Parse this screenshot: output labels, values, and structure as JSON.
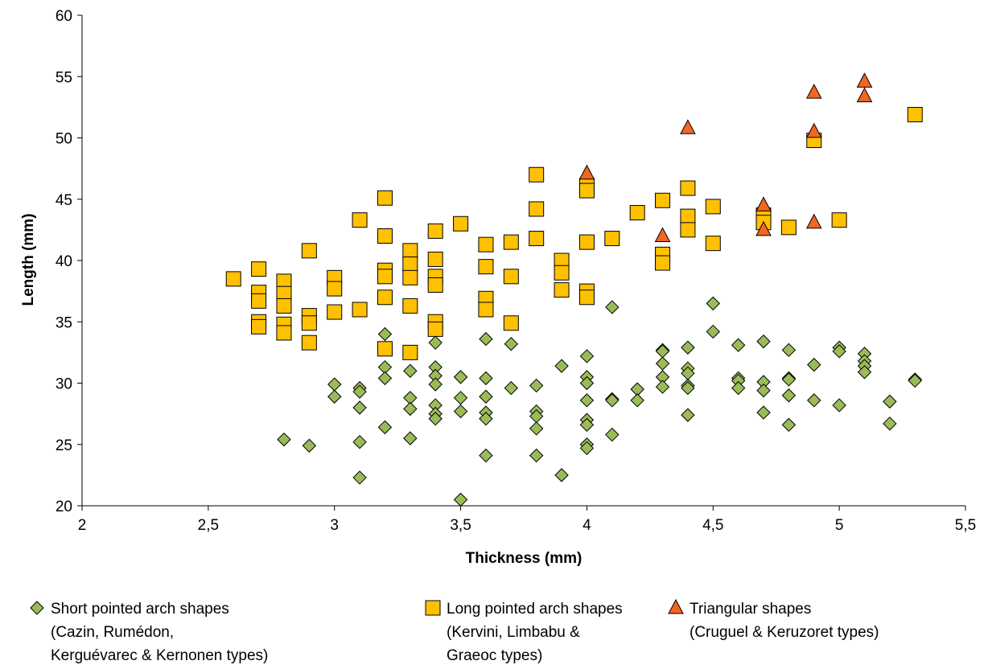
{
  "chart_data": {
    "type": "scatter",
    "title": "",
    "xlabel": "Thickness (mm)",
    "ylabel": "Length (mm)",
    "xlim": [
      2,
      5.5
    ],
    "ylim": [
      20,
      60
    ],
    "x_ticks": [
      "2",
      "2,5",
      "3",
      "3,5",
      "4",
      "4,5",
      "5",
      "5,5"
    ],
    "y_ticks": [
      "20",
      "25",
      "30",
      "35",
      "40",
      "45",
      "50",
      "55",
      "60"
    ],
    "grid": false,
    "legend_position": "bottom",
    "series": [
      {
        "marker": "diamond",
        "color": "#9bbb59",
        "legend": [
          "Short pointed arch shapes",
          "(Cazin, Rumédon,",
          "Kerguévarec & Kernonen types)"
        ],
        "points": [
          [
            2.8,
            25.4
          ],
          [
            2.9,
            24.9
          ],
          [
            3.0,
            29.9
          ],
          [
            3.0,
            28.9
          ],
          [
            3.1,
            29.6
          ],
          [
            3.1,
            29.3
          ],
          [
            3.1,
            28.0
          ],
          [
            3.1,
            25.2
          ],
          [
            3.1,
            22.3
          ],
          [
            3.2,
            34.0
          ],
          [
            3.2,
            31.3
          ],
          [
            3.2,
            30.4
          ],
          [
            3.2,
            26.4
          ],
          [
            3.3,
            31.0
          ],
          [
            3.3,
            28.8
          ],
          [
            3.3,
            27.9
          ],
          [
            3.3,
            25.5
          ],
          [
            3.4,
            33.3
          ],
          [
            3.4,
            31.3
          ],
          [
            3.4,
            30.6
          ],
          [
            3.4,
            29.9
          ],
          [
            3.4,
            28.2
          ],
          [
            3.4,
            27.5
          ],
          [
            3.4,
            27.1
          ],
          [
            3.5,
            30.5
          ],
          [
            3.5,
            28.8
          ],
          [
            3.5,
            27.7
          ],
          [
            3.5,
            20.5
          ],
          [
            3.6,
            33.6
          ],
          [
            3.6,
            30.4
          ],
          [
            3.6,
            28.9
          ],
          [
            3.6,
            27.6
          ],
          [
            3.6,
            27.1
          ],
          [
            3.6,
            24.1
          ],
          [
            3.7,
            33.2
          ],
          [
            3.7,
            29.6
          ],
          [
            3.8,
            29.8
          ],
          [
            3.8,
            27.7
          ],
          [
            3.8,
            27.3
          ],
          [
            3.8,
            26.3
          ],
          [
            3.8,
            24.1
          ],
          [
            3.9,
            31.4
          ],
          [
            3.9,
            22.5
          ],
          [
            4.0,
            32.2
          ],
          [
            4.0,
            30.5
          ],
          [
            4.0,
            30.0
          ],
          [
            4.0,
            28.6
          ],
          [
            4.0,
            27.0
          ],
          [
            4.0,
            26.6
          ],
          [
            4.0,
            25.0
          ],
          [
            4.0,
            24.7
          ],
          [
            4.1,
            36.2
          ],
          [
            4.1,
            28.7
          ],
          [
            4.1,
            28.6
          ],
          [
            4.1,
            25.8
          ],
          [
            4.2,
            29.5
          ],
          [
            4.2,
            28.6
          ],
          [
            4.3,
            32.7
          ],
          [
            4.3,
            32.6
          ],
          [
            4.3,
            31.6
          ],
          [
            4.3,
            30.5
          ],
          [
            4.3,
            29.7
          ],
          [
            4.4,
            32.9
          ],
          [
            4.4,
            31.2
          ],
          [
            4.4,
            30.8
          ],
          [
            4.4,
            29.8
          ],
          [
            4.4,
            29.6
          ],
          [
            4.4,
            27.4
          ],
          [
            4.5,
            36.5
          ],
          [
            4.5,
            34.2
          ],
          [
            4.6,
            33.1
          ],
          [
            4.6,
            30.4
          ],
          [
            4.6,
            30.2
          ],
          [
            4.6,
            29.6
          ],
          [
            4.7,
            33.4
          ],
          [
            4.7,
            30.1
          ],
          [
            4.7,
            29.4
          ],
          [
            4.7,
            27.6
          ],
          [
            4.8,
            32.7
          ],
          [
            4.8,
            30.4
          ],
          [
            4.8,
            30.3
          ],
          [
            4.8,
            29.0
          ],
          [
            4.8,
            26.6
          ],
          [
            4.9,
            31.5
          ],
          [
            4.9,
            28.6
          ],
          [
            5.0,
            32.9
          ],
          [
            5.0,
            32.6
          ],
          [
            5.0,
            28.2
          ],
          [
            5.1,
            32.4
          ],
          [
            5.1,
            31.8
          ],
          [
            5.1,
            31.4
          ],
          [
            5.1,
            30.9
          ],
          [
            5.2,
            28.5
          ],
          [
            5.2,
            26.7
          ],
          [
            5.3,
            30.3
          ],
          [
            5.3,
            30.2
          ]
        ]
      },
      {
        "marker": "square",
        "color": "#ffc000",
        "legend": [
          "Long pointed arch shapes",
          "(Kervini, Limbabu &",
          "Graeoc types)"
        ],
        "points": [
          [
            2.6,
            38.5
          ],
          [
            2.7,
            39.3
          ],
          [
            2.7,
            37.4
          ],
          [
            2.7,
            36.7
          ],
          [
            2.7,
            35.0
          ],
          [
            2.7,
            34.6
          ],
          [
            2.8,
            38.3
          ],
          [
            2.8,
            37.3
          ],
          [
            2.8,
            36.3
          ],
          [
            2.8,
            34.8
          ],
          [
            2.8,
            34.1
          ],
          [
            2.9,
            40.8
          ],
          [
            2.9,
            35.5
          ],
          [
            2.9,
            34.9
          ],
          [
            2.9,
            33.3
          ],
          [
            3.0,
            38.6
          ],
          [
            3.0,
            37.7
          ],
          [
            3.0,
            35.8
          ],
          [
            3.1,
            43.3
          ],
          [
            3.1,
            36.0
          ],
          [
            3.2,
            45.1
          ],
          [
            3.2,
            42.0
          ],
          [
            3.2,
            39.2
          ],
          [
            3.2,
            38.7
          ],
          [
            3.2,
            37.0
          ],
          [
            3.2,
            32.8
          ],
          [
            3.3,
            40.8
          ],
          [
            3.3,
            39.7
          ],
          [
            3.3,
            38.6
          ],
          [
            3.3,
            36.3
          ],
          [
            3.3,
            32.5
          ],
          [
            3.4,
            42.4
          ],
          [
            3.4,
            40.1
          ],
          [
            3.4,
            38.7
          ],
          [
            3.4,
            38.0
          ],
          [
            3.4,
            35.0
          ],
          [
            3.4,
            34.4
          ],
          [
            3.5,
            43.0
          ],
          [
            3.6,
            41.3
          ],
          [
            3.6,
            39.5
          ],
          [
            3.6,
            36.9
          ],
          [
            3.6,
            36.0
          ],
          [
            3.7,
            41.5
          ],
          [
            3.7,
            38.7
          ],
          [
            3.7,
            34.9
          ],
          [
            3.8,
            47.0
          ],
          [
            3.8,
            44.2
          ],
          [
            3.8,
            41.8
          ],
          [
            3.9,
            40.0
          ],
          [
            3.9,
            39.0
          ],
          [
            3.9,
            37.6
          ],
          [
            4.0,
            46.1
          ],
          [
            4.0,
            45.7
          ],
          [
            4.0,
            41.5
          ],
          [
            4.0,
            37.5
          ],
          [
            4.0,
            37.0
          ],
          [
            4.1,
            41.8
          ],
          [
            4.2,
            43.9
          ],
          [
            4.3,
            44.9
          ],
          [
            4.3,
            40.5
          ],
          [
            4.3,
            39.8
          ],
          [
            4.4,
            45.9
          ],
          [
            4.4,
            43.6
          ],
          [
            4.4,
            42.5
          ],
          [
            4.5,
            44.4
          ],
          [
            4.5,
            41.4
          ],
          [
            4.7,
            43.7
          ],
          [
            4.7,
            43.1
          ],
          [
            4.8,
            42.7
          ],
          [
            4.9,
            49.8
          ],
          [
            5.0,
            43.3
          ],
          [
            5.3,
            51.9
          ]
        ]
      },
      {
        "marker": "triangle",
        "color": "#f26522",
        "legend": [
          "Triangular shapes",
          "(Cruguel & Keruzoret types)"
        ],
        "points": [
          [
            4.0,
            47.1
          ],
          [
            4.3,
            42.0
          ],
          [
            4.4,
            50.8
          ],
          [
            4.7,
            44.5
          ],
          [
            4.7,
            42.5
          ],
          [
            4.9,
            53.7
          ],
          [
            4.9,
            50.5
          ],
          [
            4.9,
            43.1
          ],
          [
            5.1,
            54.6
          ],
          [
            5.1,
            53.4
          ]
        ]
      }
    ]
  }
}
